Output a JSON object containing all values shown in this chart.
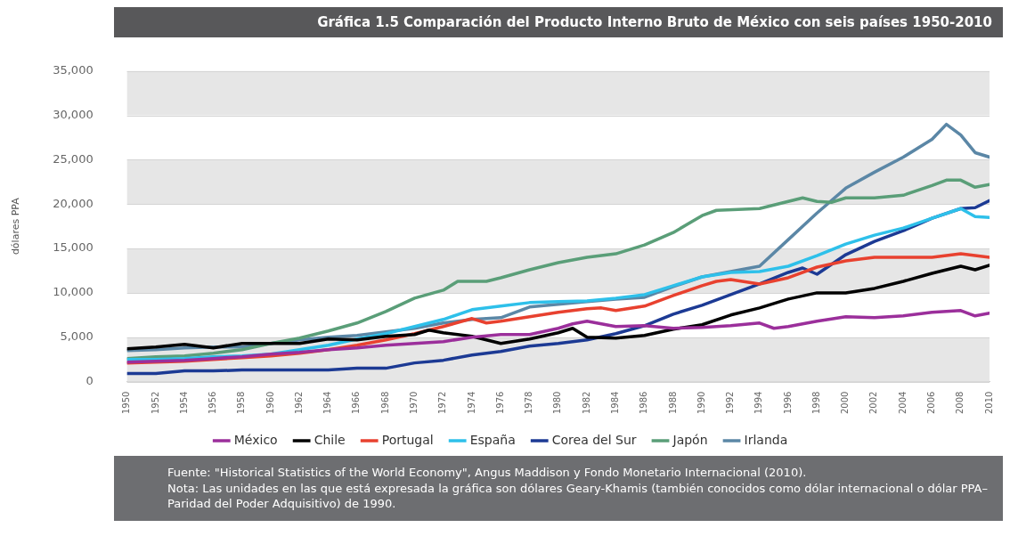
{
  "chart_data": {
    "type": "line",
    "title": "Gráfica 1.5 Comparación del Producto Interno Bruto de México con seis países 1950-2010",
    "ylabel": "dólares PPA",
    "xlim": [
      1950,
      2010
    ],
    "xticks": [
      1950,
      1952,
      1954,
      1956,
      1958,
      1960,
      1962,
      1964,
      1966,
      1968,
      1970,
      1972,
      1974,
      1976,
      1978,
      1980,
      1982,
      1984,
      1986,
      1988,
      1990,
      1992,
      1994,
      1996,
      1998,
      2000,
      2002,
      2004,
      2006,
      2008,
      2010
    ],
    "ylim": [
      0,
      35000
    ],
    "yticks": [
      0,
      {
        "value": 5000,
        "label": "5,000"
      },
      {
        "value": 10000,
        "label": "10,000"
      },
      {
        "value": 15000,
        "label": "15,000"
      },
      {
        "value": 20000,
        "label": "20,000"
      },
      {
        "value": 25000,
        "label": "25,000"
      },
      {
        "value": 30000,
        "label": "30,000"
      },
      {
        "value": 35000,
        "label": "35,000"
      }
    ],
    "grid": true,
    "legend": "bottom",
    "marker": "none",
    "line_style": "solid",
    "series": [
      {
        "name": "México",
        "color": "#9b2f9b",
        "x": [
          1950,
          1952,
          1954,
          1956,
          1958,
          1960,
          1962,
          1964,
          1966,
          1968,
          1970,
          1972,
          1974,
          1976,
          1978,
          1980,
          1981,
          1982,
          1984,
          1986,
          1988,
          1990,
          1992,
          1994,
          1995,
          1996,
          1998,
          2000,
          2002,
          2004,
          2006,
          2008,
          2009,
          2010
        ],
        "values": [
          2200,
          2300,
          2400,
          2600,
          2800,
          3100,
          3300,
          3600,
          3800,
          4100,
          4300,
          4500,
          5000,
          5300,
          5300,
          6000,
          6500,
          6800,
          6200,
          6300,
          6000,
          6100,
          6300,
          6600,
          6000,
          6200,
          6800,
          7300,
          7200,
          7400,
          7800,
          8000,
          7400,
          7700
        ]
      },
      {
        "name": "Chile",
        "color": "#000000",
        "x": [
          1950,
          1952,
          1954,
          1956,
          1958,
          1960,
          1962,
          1964,
          1966,
          1968,
          1970,
          1971,
          1972,
          1974,
          1976,
          1978,
          1980,
          1981,
          1982,
          1984,
          1986,
          1988,
          1990,
          1992,
          1994,
          1996,
          1998,
          2000,
          2002,
          2004,
          2006,
          2008,
          2009,
          2010
        ],
        "values": [
          3700,
          3900,
          4200,
          3800,
          4300,
          4300,
          4300,
          4800,
          4700,
          5100,
          5300,
          5800,
          5500,
          5100,
          4300,
          4800,
          5500,
          6000,
          5000,
          4900,
          5200,
          5900,
          6400,
          7500,
          8300,
          9300,
          10000,
          10000,
          10500,
          11300,
          12200,
          13000,
          12600,
          13100
        ]
      },
      {
        "name": "Portugal",
        "color": "#e8412f",
        "x": [
          1950,
          1952,
          1954,
          1956,
          1958,
          1960,
          1962,
          1964,
          1966,
          1968,
          1970,
          1972,
          1974,
          1975,
          1976,
          1978,
          1980,
          1982,
          1983,
          1984,
          1986,
          1988,
          1990,
          1991,
          1992,
          1994,
          1996,
          1998,
          2000,
          2002,
          2004,
          2006,
          2008,
          2010
        ],
        "values": [
          2100,
          2200,
          2300,
          2500,
          2700,
          2900,
          3200,
          3600,
          4100,
          4700,
          5400,
          6200,
          7100,
          6600,
          6800,
          7300,
          7800,
          8200,
          8300,
          8000,
          8500,
          9700,
          10800,
          11300,
          11500,
          11000,
          11700,
          12900,
          13600,
          14000,
          14000,
          14000,
          14400,
          14000
        ]
      },
      {
        "name": "España",
        "color": "#2ec0ea",
        "x": [
          1950,
          1952,
          1954,
          1956,
          1958,
          1960,
          1962,
          1964,
          1966,
          1968,
          1970,
          1972,
          1974,
          1976,
          1978,
          1980,
          1982,
          1984,
          1986,
          1988,
          1990,
          1992,
          1994,
          1996,
          1998,
          2000,
          2002,
          2004,
          2006,
          2008,
          2009,
          2010
        ],
        "values": [
          2500,
          2500,
          2600,
          2800,
          2900,
          3100,
          3600,
          4100,
          4800,
          5400,
          6200,
          7000,
          8100,
          8500,
          8900,
          9000,
          9100,
          9400,
          9800,
          10800,
          11800,
          12300,
          12400,
          13000,
          14200,
          15500,
          16500,
          17300,
          18400,
          19500,
          18600,
          18500
        ]
      },
      {
        "name": "Corea del Sur",
        "color": "#1c3a94",
        "x": [
          1950,
          1952,
          1954,
          1956,
          1958,
          1960,
          1962,
          1964,
          1966,
          1968,
          1970,
          1972,
          1974,
          1976,
          1978,
          1980,
          1982,
          1984,
          1986,
          1988,
          1990,
          1992,
          1994,
          1996,
          1997,
          1998,
          2000,
          2002,
          2004,
          2006,
          2008,
          2009,
          2010
        ],
        "values": [
          900,
          900,
          1200,
          1200,
          1300,
          1300,
          1300,
          1300,
          1500,
          1500,
          2100,
          2400,
          3000,
          3400,
          4000,
          4300,
          4700,
          5400,
          6300,
          7600,
          8600,
          9800,
          11000,
          12300,
          12800,
          12100,
          14300,
          15800,
          17000,
          18400,
          19500,
          19600,
          20400
        ]
      },
      {
        "name": "Japón",
        "color": "#5a9e78",
        "x": [
          1950,
          1952,
          1954,
          1956,
          1958,
          1960,
          1962,
          1964,
          1966,
          1968,
          1970,
          1972,
          1973,
          1975,
          1976,
          1978,
          1980,
          1982,
          1984,
          1986,
          1988,
          1990,
          1991,
          1994,
          1996,
          1997,
          1998,
          1999,
          2000,
          2002,
          2004,
          2006,
          2007,
          2008,
          2009,
          2010
        ],
        "values": [
          2600,
          2800,
          2900,
          3200,
          3600,
          4300,
          4900,
          5700,
          6600,
          7900,
          9400,
          10300,
          11300,
          11300,
          11700,
          12600,
          13400,
          14000,
          14400,
          15400,
          16800,
          18700,
          19300,
          19500,
          20300,
          20700,
          20300,
          20200,
          20700,
          20700,
          21000,
          22100,
          22700,
          22700,
          21900,
          22200
        ]
      },
      {
        "name": "Irlanda",
        "color": "#5b87a6",
        "x": [
          1950,
          1952,
          1954,
          1956,
          1958,
          1960,
          1962,
          1964,
          1966,
          1968,
          1970,
          1972,
          1974,
          1976,
          1978,
          1980,
          1982,
          1984,
          1986,
          1988,
          1990,
          1992,
          1994,
          1996,
          1998,
          2000,
          2002,
          2004,
          2006,
          2007,
          2008,
          2009,
          2010
        ],
        "values": [
          3500,
          3600,
          3800,
          3900,
          3900,
          4300,
          4700,
          5000,
          5200,
          5600,
          6000,
          6600,
          7000,
          7200,
          8400,
          8700,
          9000,
          9300,
          9500,
          10700,
          11800,
          12400,
          13000,
          16000,
          19000,
          21800,
          23600,
          25300,
          27300,
          29000,
          27800,
          25800,
          25300
        ]
      }
    ],
    "annotations": [
      "Fuente: \"Historical Statistics of the World Economy\", Angus Maddison y Fondo Monetario Internacional (2010).",
      "Nota: Las unidades en las que está expresada la gráfica son dólares Geary-Khamis (también conocidos como dólar internacional o dólar PPA–Paridad del Poder Adquisitivo) de 1990."
    ]
  }
}
